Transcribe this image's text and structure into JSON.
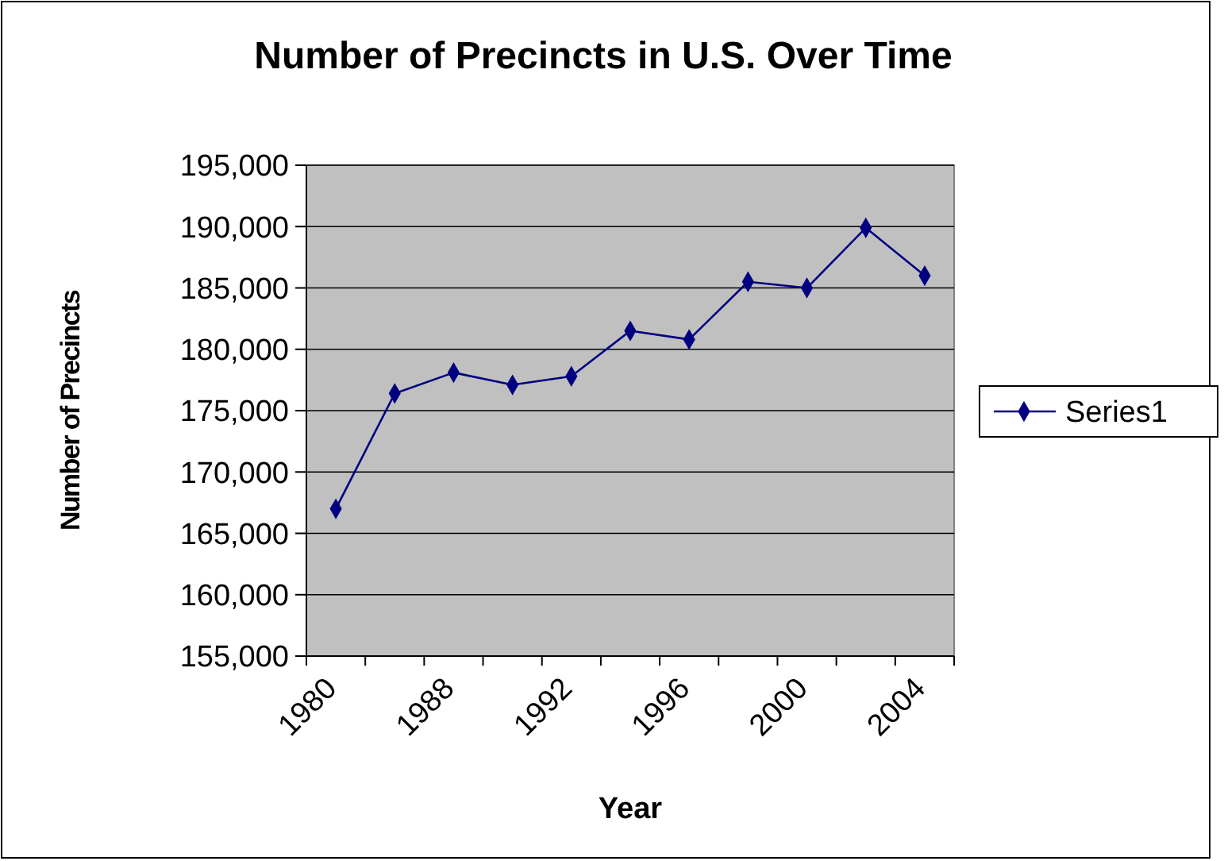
{
  "chart_data": {
    "type": "line",
    "title": "Number of Precincts in U.S. Over Time",
    "xlabel": "Year",
    "ylabel": "Number of Precincts",
    "categories": [
      "1980",
      null,
      "1988",
      null,
      "1992",
      null,
      "1996",
      null,
      "2000",
      null,
      "2004"
    ],
    "series": [
      {
        "name": "Series1",
        "color": "#000080",
        "values": [
          167000,
          176400,
          178100,
          177100,
          177800,
          181500,
          180800,
          185500,
          185000,
          189900,
          186000
        ]
      }
    ],
    "ylim": [
      155000,
      195000
    ],
    "yticks": [
      {
        "value": 155000,
        "label": "155,000"
      },
      {
        "value": 160000,
        "label": "160,000"
      },
      {
        "value": 165000,
        "label": "165,000"
      },
      {
        "value": 170000,
        "label": "170,000"
      },
      {
        "value": 175000,
        "label": "175,000"
      },
      {
        "value": 180000,
        "label": "180,000"
      },
      {
        "value": 185000,
        "label": "185,000"
      },
      {
        "value": 190000,
        "label": "190,000"
      },
      {
        "value": 195000,
        "label": "195,000"
      }
    ],
    "grid": "y",
    "legend": "right",
    "marker": "diamond",
    "line_style": "solid"
  }
}
